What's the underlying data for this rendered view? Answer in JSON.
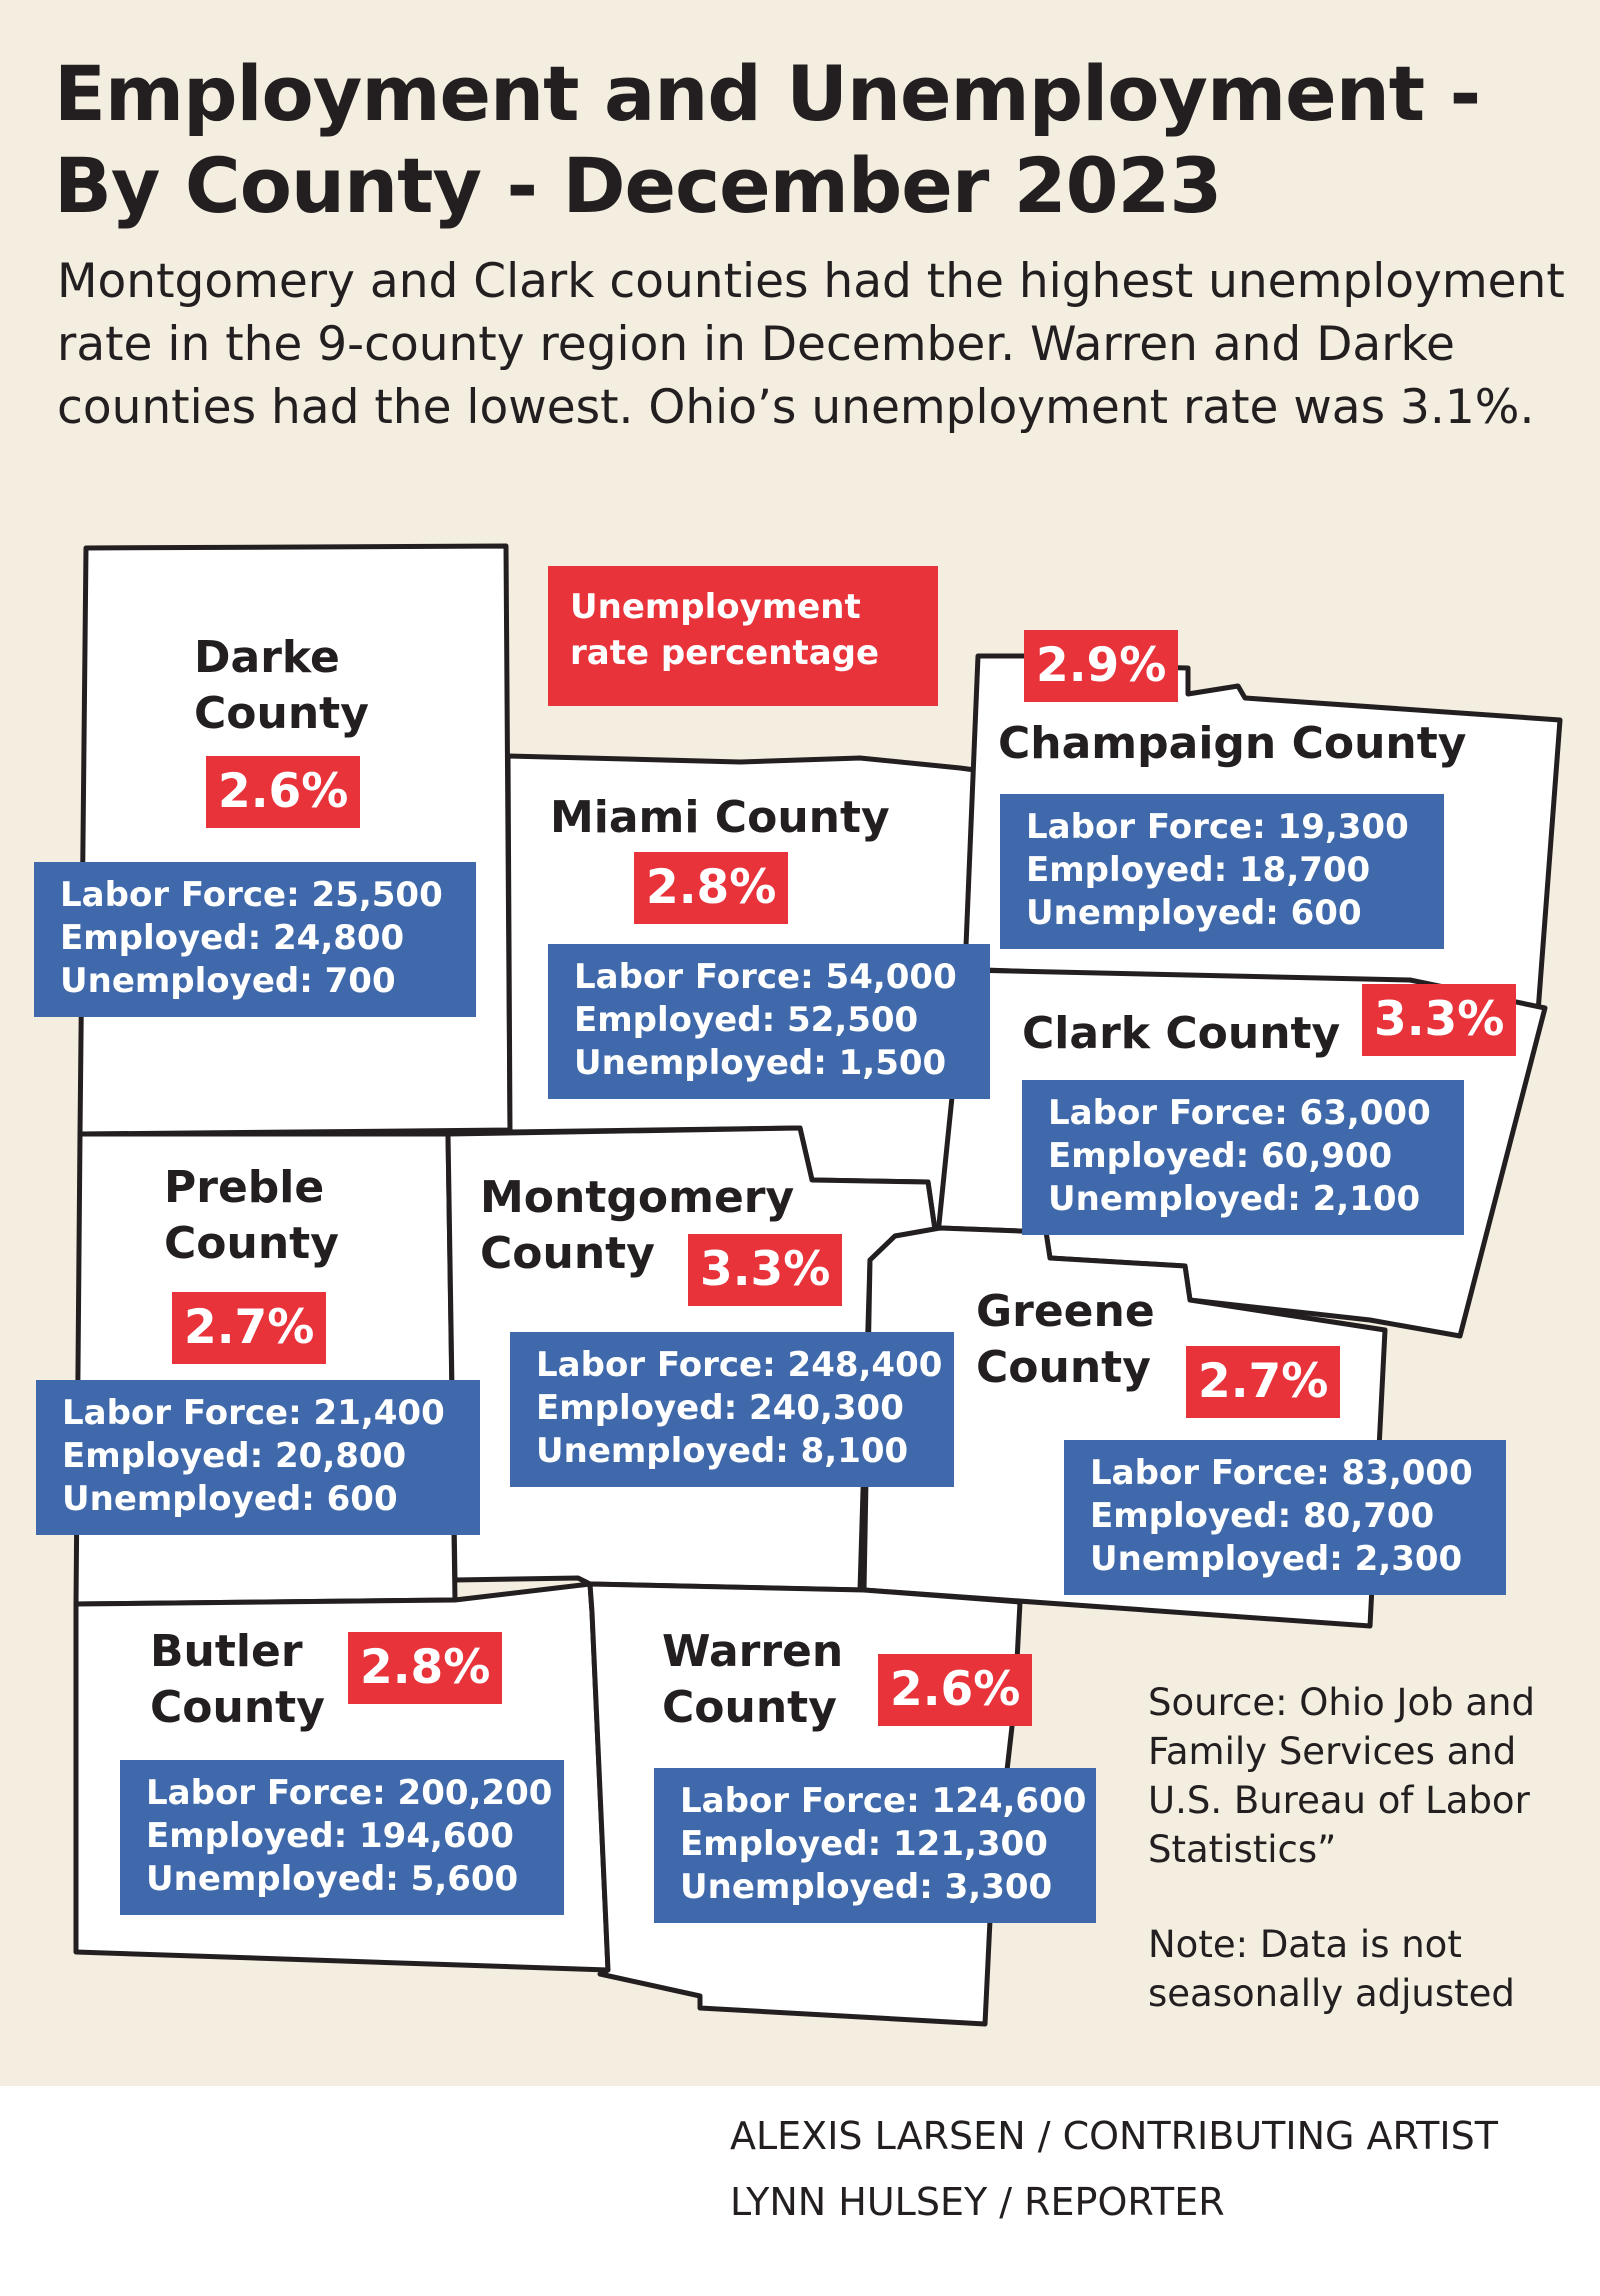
{
  "title": {
    "line1": "Employment  and Unemployment -",
    "line2": "By County - December 2023"
  },
  "subtitle": "Montgomery and Clark counties had the highest unemployment rate in the 9-county region in December. Warren and Darke counties had the lowest. Ohio’s unemployment rate was 3.1%.",
  "legend": {
    "line1": "Unemployment",
    "line2": "rate percentage"
  },
  "colors": {
    "background": "#f3eee0",
    "rate": "#e8333b",
    "stats": "#3f69aa",
    "county": "#ffffff"
  },
  "counties": [
    {
      "id": "darke",
      "name_lines": [
        "Darke",
        "County"
      ],
      "rate": "2.6%",
      "labor_force": "Labor Force: 25,500",
      "employed": "Employed: 24,800",
      "unemployed": "Unemployed: 700"
    },
    {
      "id": "miami",
      "name_lines": [
        "Miami County"
      ],
      "rate": "2.8%",
      "labor_force": "Labor Force: 54,000",
      "employed": "Employed: 52,500",
      "unemployed": "Unemployed: 1,500"
    },
    {
      "id": "champaign",
      "name_lines": [
        "Champaign County"
      ],
      "rate": "2.9%",
      "labor_force": "Labor Force: 19,300",
      "employed": "Employed: 18,700",
      "unemployed": "Unemployed: 600"
    },
    {
      "id": "clark",
      "name_lines": [
        "Clark County"
      ],
      "rate": "3.3%",
      "labor_force": "Labor Force: 63,000",
      "employed": "Employed: 60,900",
      "unemployed": "Unemployed: 2,100"
    },
    {
      "id": "preble",
      "name_lines": [
        "Preble",
        "County"
      ],
      "rate": "2.7%",
      "labor_force": "Labor Force: 21,400",
      "employed": "Employed: 20,800",
      "unemployed": "Unemployed: 600"
    },
    {
      "id": "montgomery",
      "name_lines": [
        "Montgomery",
        "County"
      ],
      "rate": "3.3%",
      "labor_force": "Labor Force: 248,400",
      "employed": "Employed: 240,300",
      "unemployed": "Unemployed: 8,100"
    },
    {
      "id": "greene",
      "name_lines": [
        "Greene",
        "County"
      ],
      "rate": "2.7%",
      "labor_force": "Labor Force: 83,000",
      "employed": "Employed: 80,700",
      "unemployed": "Unemployed: 2,300"
    },
    {
      "id": "butler",
      "name_lines": [
        "Butler",
        "County"
      ],
      "rate": "2.8%",
      "labor_force": "Labor Force: 200,200",
      "employed": "Employed: 194,600",
      "unemployed": "Unemployed: 5,600"
    },
    {
      "id": "warren",
      "name_lines": [
        "Warren",
        "County"
      ],
      "rate": "2.6%",
      "labor_force": "Labor Force: 124,600",
      "employed": "Employed: 121,300",
      "unemployed": "Unemployed: 3,300"
    }
  ],
  "source": "Source: Ohio Job and Family Services and U.S. Bureau of Labor Statistics”",
  "note": "Note: Data is not seasonally adjusted",
  "credits": {
    "artist": "ALEXIS LARSEN / CONTRIBUTING ARTIST",
    "reporter": "LYNN HULSEY / REPORTER"
  }
}
